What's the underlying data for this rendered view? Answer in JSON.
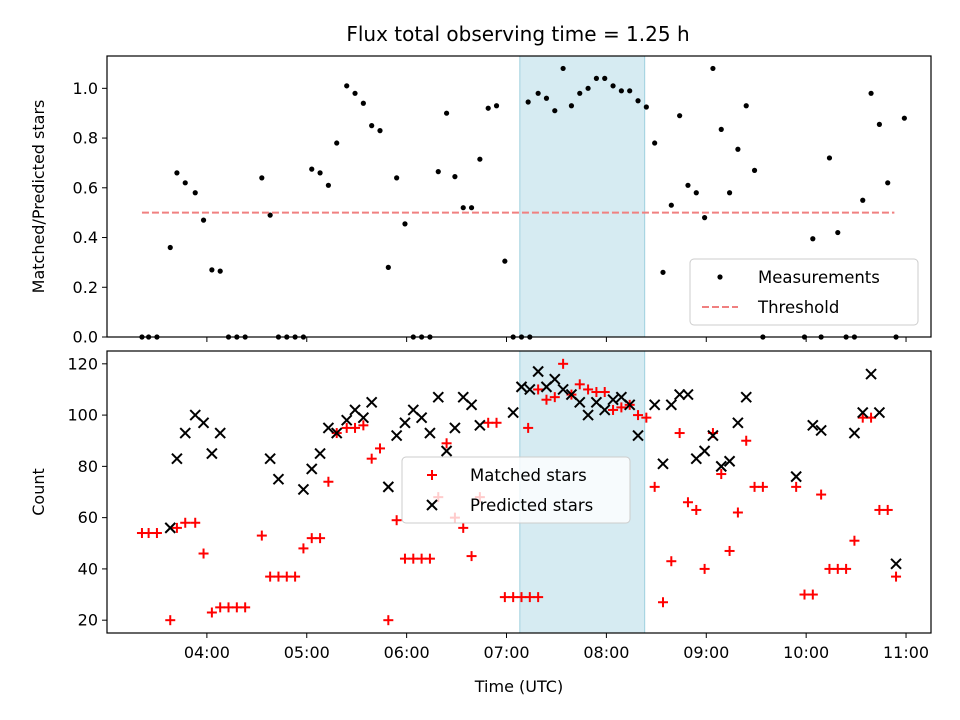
{
  "figure": {
    "title": "Flux total observing time = 1.25 h"
  },
  "chart_data": [
    {
      "type": "scatter",
      "ylabel": "Matched/Predicted stars",
      "xlabel": "",
      "xlim": [
        "03:00",
        "11:15"
      ],
      "ylim": [
        0,
        1.13
      ],
      "y_ticks": [
        0.0,
        0.2,
        0.4,
        0.6,
        0.8,
        1.0
      ],
      "x_ticks": [
        "04:00",
        "05:00",
        "06:00",
        "07:00",
        "08:00",
        "09:00",
        "10:00",
        "11:00"
      ],
      "highlight_span": [
        "07:08",
        "08:23"
      ],
      "grid": false,
      "legend_position": "lower-right",
      "series": [
        {
          "name": "Measurements",
          "color": "#000000",
          "marker": "dot",
          "points": [
            [
              "03:21",
              0
            ],
            [
              "03:25",
              0
            ],
            [
              "03:30",
              0
            ],
            [
              "03:38",
              0.36
            ],
            [
              "03:42",
              0.66
            ],
            [
              "03:47",
              0.62
            ],
            [
              "03:53",
              0.58
            ],
            [
              "03:58",
              0.47
            ],
            [
              "04:03",
              0.27
            ],
            [
              "04:08",
              0.265
            ],
            [
              "04:13",
              0
            ],
            [
              "04:18",
              0
            ],
            [
              "04:23",
              0
            ],
            [
              "04:33",
              0.64
            ],
            [
              "04:38",
              0.49
            ],
            [
              "04:43",
              0
            ],
            [
              "04:48",
              0
            ],
            [
              "04:53",
              0
            ],
            [
              "04:58",
              0
            ],
            [
              "05:03",
              0.675
            ],
            [
              "05:08",
              0.66
            ],
            [
              "05:13",
              0.61
            ],
            [
              "05:18",
              0.78
            ],
            [
              "05:24",
              1.01
            ],
            [
              "05:29",
              0.98
            ],
            [
              "05:34",
              0.94
            ],
            [
              "05:39",
              0.85
            ],
            [
              "05:44",
              0.83
            ],
            [
              "05:49",
              0.28
            ],
            [
              "05:54",
              0.64
            ],
            [
              "05:59",
              0.455
            ],
            [
              "06:04",
              0
            ],
            [
              "06:09",
              0
            ],
            [
              "06:14",
              0
            ],
            [
              "06:19",
              0.665
            ],
            [
              "06:24",
              0.9
            ],
            [
              "06:29",
              0.645
            ],
            [
              "06:34",
              0.52
            ],
            [
              "06:39",
              0.52
            ],
            [
              "06:44",
              0.715
            ],
            [
              "06:49",
              0.92
            ],
            [
              "06:54",
              0.93
            ],
            [
              "06:59",
              0.305
            ],
            [
              "07:04",
              0
            ],
            [
              "07:09",
              0
            ],
            [
              "07:14",
              0
            ],
            [
              "07:13",
              0.945
            ],
            [
              "07:19",
              0.98
            ],
            [
              "07:24",
              0.96
            ],
            [
              "07:29",
              0.91
            ],
            [
              "07:34",
              1.08
            ],
            [
              "07:39",
              0.93
            ],
            [
              "07:44",
              0.98
            ],
            [
              "07:49",
              1.0
            ],
            [
              "07:54",
              1.04
            ],
            [
              "07:59",
              1.04
            ],
            [
              "08:04",
              1.01
            ],
            [
              "08:09",
              0.99
            ],
            [
              "08:14",
              0.99
            ],
            [
              "08:19",
              0.95
            ],
            [
              "08:24",
              0.925
            ],
            [
              "08:29",
              0.78
            ],
            [
              "08:34",
              0.26
            ],
            [
              "08:39",
              0.53
            ],
            [
              "08:44",
              0.89
            ],
            [
              "08:49",
              0.61
            ],
            [
              "08:54",
              0.58
            ],
            [
              "08:59",
              0.48
            ],
            [
              "09:04",
              1.08
            ],
            [
              "09:09",
              0.835
            ],
            [
              "09:14",
              0.58
            ],
            [
              "09:19",
              0.755
            ],
            [
              "09:24",
              0.93
            ],
            [
              "09:29",
              0.67
            ],
            [
              "09:34",
              0
            ],
            [
              "09:59",
              0
            ],
            [
              "10:04",
              0.395
            ],
            [
              "10:09",
              0
            ],
            [
              "10:14",
              0.72
            ],
            [
              "10:19",
              0.42
            ],
            [
              "10:24",
              0
            ],
            [
              "10:29",
              0
            ],
            [
              "10:34",
              0.55
            ],
            [
              "10:39",
              0.98
            ],
            [
              "10:44",
              0.855
            ],
            [
              "10:49",
              0.62
            ],
            [
              "10:54",
              0
            ],
            [
              "10:59",
              0.88
            ]
          ]
        },
        {
          "name": "Threshold",
          "color": "#f08080",
          "style": "dashed",
          "points": [
            [
              "03:21",
              0.5
            ],
            [
              "10:53",
              0.5
            ]
          ]
        }
      ]
    },
    {
      "type": "scatter",
      "ylabel": "Count",
      "xlabel": "Time (UTC)",
      "xlim": [
        "03:00",
        "11:15"
      ],
      "ylim": [
        15,
        125
      ],
      "y_ticks": [
        20,
        40,
        60,
        80,
        100,
        120
      ],
      "x_ticks": [
        "04:00",
        "05:00",
        "06:00",
        "07:00",
        "08:00",
        "09:00",
        "10:00",
        "11:00"
      ],
      "highlight_span": [
        "07:08",
        "08:23"
      ],
      "grid": false,
      "legend_position": "center",
      "series": [
        {
          "name": "Matched stars",
          "color": "#ff0000",
          "marker": "plus",
          "points": [
            [
              "03:21",
              54
            ],
            [
              "03:25",
              54
            ],
            [
              "03:30",
              54
            ],
            [
              "03:38",
              20
            ],
            [
              "03:42",
              56
            ],
            [
              "03:47",
              58
            ],
            [
              "03:53",
              58
            ],
            [
              "03:58",
              46
            ],
            [
              "04:03",
              23
            ],
            [
              "04:08",
              25
            ],
            [
              "04:13",
              25
            ],
            [
              "04:18",
              25
            ],
            [
              "04:23",
              25
            ],
            [
              "04:33",
              53
            ],
            [
              "04:38",
              37
            ],
            [
              "04:43",
              37
            ],
            [
              "04:48",
              37
            ],
            [
              "04:53",
              37
            ],
            [
              "04:58",
              48
            ],
            [
              "05:03",
              52
            ],
            [
              "05:08",
              52
            ],
            [
              "05:13",
              74
            ],
            [
              "05:18",
              93
            ],
            [
              "05:24",
              95
            ],
            [
              "05:29",
              95
            ],
            [
              "05:34",
              96
            ],
            [
              "05:39",
              83
            ],
            [
              "05:44",
              87
            ],
            [
              "05:49",
              20
            ],
            [
              "05:54",
              59
            ],
            [
              "05:59",
              44
            ],
            [
              "06:04",
              44
            ],
            [
              "06:09",
              44
            ],
            [
              "06:14",
              44
            ],
            [
              "06:19",
              68
            ],
            [
              "06:24",
              89
            ],
            [
              "06:29",
              60
            ],
            [
              "06:34",
              56
            ],
            [
              "06:39",
              45
            ],
            [
              "06:44",
              68
            ],
            [
              "06:49",
              97
            ],
            [
              "06:54",
              97
            ],
            [
              "06:59",
              29
            ],
            [
              "07:04",
              29
            ],
            [
              "07:09",
              29
            ],
            [
              "07:14",
              29
            ],
            [
              "07:19",
              29
            ],
            [
              "07:13",
              95
            ],
            [
              "07:19",
              110
            ],
            [
              "07:24",
              106
            ],
            [
              "07:29",
              107
            ],
            [
              "07:34",
              120
            ],
            [
              "07:39",
              108
            ],
            [
              "07:44",
              112
            ],
            [
              "07:49",
              110
            ],
            [
              "07:54",
              109
            ],
            [
              "07:59",
              109
            ],
            [
              "08:04",
              102
            ],
            [
              "08:09",
              103
            ],
            [
              "08:14",
              104
            ],
            [
              "08:19",
              100
            ],
            [
              "08:24",
              99
            ],
            [
              "08:29",
              72
            ],
            [
              "08:34",
              27
            ],
            [
              "08:39",
              43
            ],
            [
              "08:44",
              93
            ],
            [
              "08:49",
              66
            ],
            [
              "08:54",
              63
            ],
            [
              "08:59",
              40
            ],
            [
              "09:04",
              93
            ],
            [
              "09:09",
              77
            ],
            [
              "09:14",
              47
            ],
            [
              "09:19",
              62
            ],
            [
              "09:24",
              90
            ],
            [
              "09:29",
              72
            ],
            [
              "09:34",
              72
            ],
            [
              "09:54",
              72
            ],
            [
              "09:59",
              30
            ],
            [
              "10:04",
              30
            ],
            [
              "10:09",
              69
            ],
            [
              "10:14",
              40
            ],
            [
              "10:19",
              40
            ],
            [
              "10:24",
              40
            ],
            [
              "10:29",
              51
            ],
            [
              "10:34",
              99
            ],
            [
              "10:39",
              99
            ],
            [
              "10:44",
              63
            ],
            [
              "10:49",
              63
            ],
            [
              "10:54",
              37
            ]
          ]
        },
        {
          "name": "Predicted stars",
          "color": "#000000",
          "marker": "x",
          "points": [
            [
              "03:38",
              56
            ],
            [
              "03:42",
              83
            ],
            [
              "03:47",
              93
            ],
            [
              "03:53",
              100
            ],
            [
              "03:58",
              97
            ],
            [
              "04:03",
              85
            ],
            [
              "04:08",
              93
            ],
            [
              "04:38",
              83
            ],
            [
              "04:43",
              75
            ],
            [
              "04:58",
              71
            ],
            [
              "05:03",
              79
            ],
            [
              "05:08",
              85
            ],
            [
              "05:13",
              95
            ],
            [
              "05:18",
              93
            ],
            [
              "05:24",
              98
            ],
            [
              "05:29",
              102
            ],
            [
              "05:34",
              99
            ],
            [
              "05:39",
              105
            ],
            [
              "05:49",
              72
            ],
            [
              "05:54",
              92
            ],
            [
              "05:59",
              97
            ],
            [
              "06:04",
              102
            ],
            [
              "06:09",
              99
            ],
            [
              "06:14",
              93
            ],
            [
              "06:19",
              107
            ],
            [
              "06:24",
              86
            ],
            [
              "06:29",
              95
            ],
            [
              "06:34",
              107
            ],
            [
              "06:39",
              104
            ],
            [
              "06:44",
              96
            ],
            [
              "07:04",
              101
            ],
            [
              "07:09",
              111
            ],
            [
              "07:14",
              110
            ],
            [
              "07:19",
              117
            ],
            [
              "07:24",
              111
            ],
            [
              "07:29",
              114
            ],
            [
              "07:34",
              110
            ],
            [
              "07:39",
              108
            ],
            [
              "07:44",
              105
            ],
            [
              "07:49",
              100
            ],
            [
              "07:54",
              105
            ],
            [
              "07:59",
              102
            ],
            [
              "08:04",
              106
            ],
            [
              "08:09",
              107
            ],
            [
              "08:14",
              104
            ],
            [
              "08:19",
              92
            ],
            [
              "08:29",
              104
            ],
            [
              "08:34",
              81
            ],
            [
              "08:39",
              104
            ],
            [
              "08:44",
              108
            ],
            [
              "08:49",
              108
            ],
            [
              "08:54",
              83
            ],
            [
              "08:59",
              86
            ],
            [
              "09:04",
              92
            ],
            [
              "09:09",
              80
            ],
            [
              "09:14",
              82
            ],
            [
              "09:19",
              97
            ],
            [
              "09:24",
              107
            ],
            [
              "09:54",
              76
            ],
            [
              "10:04",
              96
            ],
            [
              "10:09",
              94
            ],
            [
              "10:29",
              93
            ],
            [
              "10:34",
              101
            ],
            [
              "10:39",
              116
            ],
            [
              "10:44",
              101
            ],
            [
              "10:54",
              42
            ]
          ]
        }
      ]
    }
  ]
}
